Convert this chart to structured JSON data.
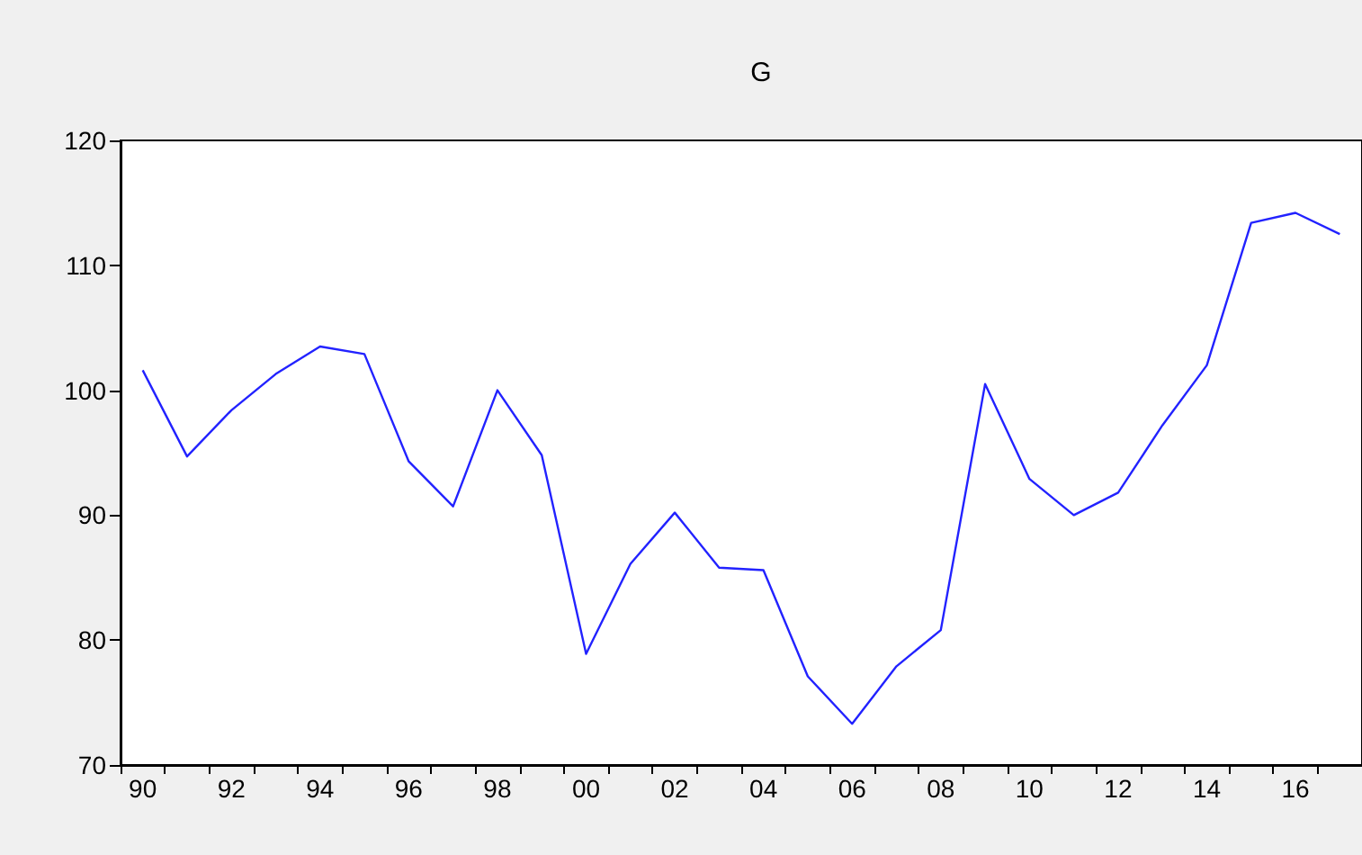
{
  "chart_data": {
    "type": "line",
    "title": "G",
    "categories": [
      "90",
      null,
      "92",
      null,
      "94",
      null,
      "96",
      null,
      "98",
      null,
      "00",
      null,
      "02",
      null,
      "04",
      null,
      "06",
      null,
      "08",
      null,
      "10",
      null,
      "12",
      null,
      "14",
      null,
      "16",
      null
    ],
    "series": [
      {
        "color": "#2222ff",
        "values": [
          101.6,
          94.7,
          98.4,
          101.3,
          103.5,
          102.9,
          94.3,
          90.7,
          100.0,
          94.8,
          78.9,
          86.1,
          90.2,
          85.8,
          85.6,
          77.1,
          73.3,
          77.9,
          80.8,
          100.5,
          92.9,
          90.0,
          91.8,
          97.2,
          102.0,
          113.4,
          114.2,
          112.5
        ]
      }
    ],
    "ylim": [
      70,
      120
    ],
    "yticks": [
      70,
      80,
      90,
      100,
      110,
      120
    ],
    "grid": false,
    "marker": "none",
    "line_style": "solid"
  }
}
